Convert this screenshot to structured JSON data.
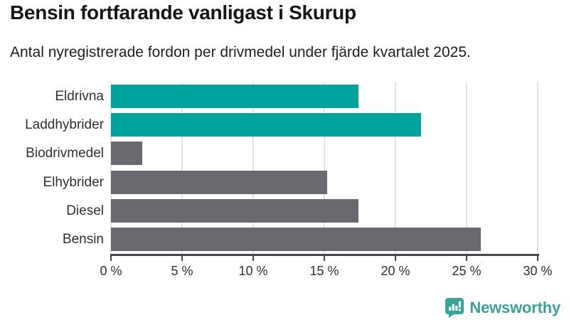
{
  "header": {
    "title": "Bensin fortfarande vanligast i Skurup",
    "subtitle": "Antal nyregistrerade fordon per drivmedel under fjärde kvartalet 2025."
  },
  "chart_data": {
    "type": "bar",
    "orientation": "horizontal",
    "title": "Bensin fortfarande vanligast i Skurup",
    "subtitle": "Antal nyregistrerade fordon per drivmedel under fjärde kvartalet 2025.",
    "categories": [
      "Eldrivna",
      "Laddhybrider",
      "Biodrivmedel",
      "Elhybrider",
      "Diesel",
      "Bensin"
    ],
    "values": [
      17.4,
      21.8,
      2.2,
      15.2,
      17.4,
      26.0
    ],
    "unit": "%",
    "bar_colors": [
      "#00a39b",
      "#00a39b",
      "#6a6970",
      "#6a6970",
      "#6a6970",
      "#6a6970"
    ],
    "xlabel": "",
    "ylabel": "",
    "xlim": [
      0,
      30
    ],
    "xticks": [
      0,
      5,
      10,
      15,
      20,
      25,
      30
    ],
    "xtick_labels": [
      "0 %",
      "5 %",
      "10 %",
      "15 %",
      "20 %",
      "25 %",
      "30 %"
    ],
    "grid": "vertical-only",
    "legend": "none"
  },
  "colors": {
    "highlight_teal": "#00a39b",
    "bar_gray": "#6a6970",
    "gridline": "#e4e4e6",
    "axis": "#47474c",
    "label_text": "#2f2f33",
    "title_text": "#161616",
    "brand_teal": "#3f9f97"
  },
  "footer": {
    "brand": "Newsworthy",
    "logo_icon": "speech-bubble-bar-chart-icon"
  }
}
